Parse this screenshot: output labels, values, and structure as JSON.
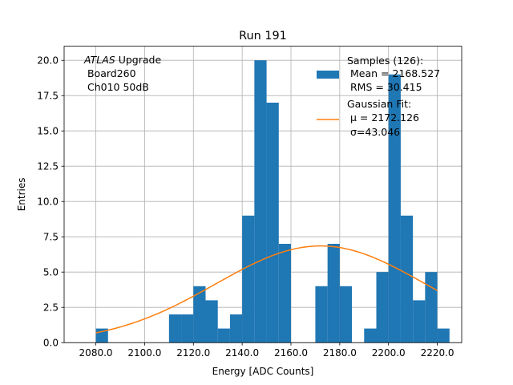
{
  "chart_data": {
    "type": "bar",
    "title": "Run 191",
    "xlabel": "Energy [ADC Counts]",
    "ylabel": "Entries",
    "xlim": [
      2067.0,
      2230.0
    ],
    "ylim": [
      0,
      21
    ],
    "grid": true,
    "x_ticks": [
      2080.0,
      2100.0,
      2120.0,
      2140.0,
      2160.0,
      2180.0,
      2200.0,
      2220.0
    ],
    "x_tick_labels": [
      "2080.0",
      "2100.0",
      "2120.0",
      "2140.0",
      "2160.0",
      "2180.0",
      "2200.0",
      "2220.0"
    ],
    "y_ticks": [
      0,
      2.5,
      5,
      7.5,
      10,
      12.5,
      15,
      17.5,
      20
    ],
    "y_tick_labels": [
      "0.0",
      "2.5",
      "5.0",
      "7.5",
      "10.0",
      "12.5",
      "15.0",
      "17.5",
      "20.0"
    ],
    "bin_width": 5,
    "bins": [
      {
        "x0": 2080,
        "count": 1
      },
      {
        "x0": 2110,
        "count": 2
      },
      {
        "x0": 2115,
        "count": 2
      },
      {
        "x0": 2120,
        "count": 4
      },
      {
        "x0": 2125,
        "count": 3
      },
      {
        "x0": 2130,
        "count": 1
      },
      {
        "x0": 2135,
        "count": 2
      },
      {
        "x0": 2140,
        "count": 9
      },
      {
        "x0": 2145,
        "count": 20
      },
      {
        "x0": 2150,
        "count": 17
      },
      {
        "x0": 2155,
        "count": 7
      },
      {
        "x0": 2170,
        "count": 4
      },
      {
        "x0": 2175,
        "count": 7
      },
      {
        "x0": 2180,
        "count": 4
      },
      {
        "x0": 2190,
        "count": 1
      },
      {
        "x0": 2195,
        "count": 5
      },
      {
        "x0": 2200,
        "count": 19
      },
      {
        "x0": 2205,
        "count": 9
      },
      {
        "x0": 2210,
        "count": 3
      },
      {
        "x0": 2215,
        "count": 5
      },
      {
        "x0": 2220,
        "count": 1
      }
    ],
    "fit": {
      "type": "gaussian",
      "amplitude": 6.85,
      "mu": 2172.126,
      "sigma": 43.046,
      "x_range": [
        2080,
        2220
      ]
    },
    "annotation": {
      "italic": "ATLAS",
      "line1_rest": " Upgrade",
      "line2": " Board260",
      "line3": " Ch010 50dB"
    },
    "legend": {
      "position": "top-right",
      "samples_title": "Samples (126):",
      "samples_mean": " Mean = 2168.527",
      "samples_rms": " RMS = 30.415",
      "fit_title": "Gaussian Fit:",
      "fit_mu": " μ = 2172.126",
      "fit_sigma": " σ=43.046"
    },
    "colors": {
      "bars": "#1f77b4",
      "fit": "#ff7f0e",
      "grid": "#b0b0b0"
    }
  }
}
